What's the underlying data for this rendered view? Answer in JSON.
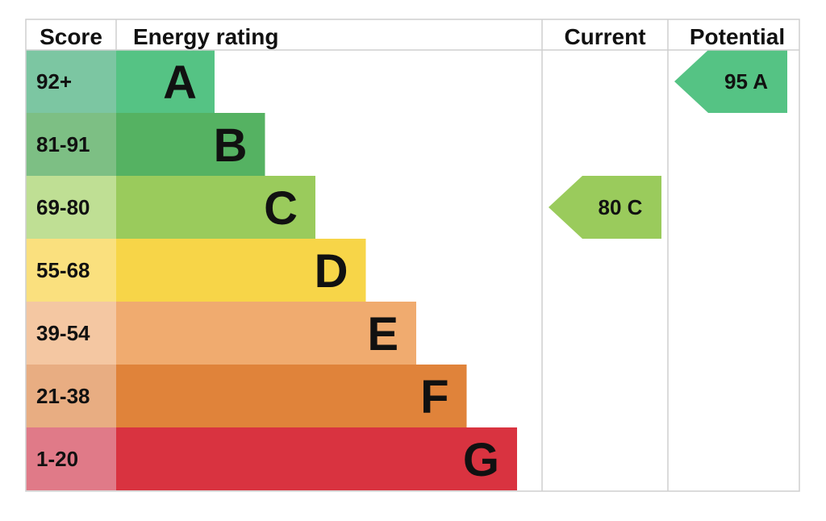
{
  "headers": {
    "score": "Score",
    "energy_rating": "Energy rating",
    "current": "Current",
    "potential": "Potential"
  },
  "chart_data": {
    "type": "bar",
    "title": "",
    "categories": [
      "A",
      "B",
      "C",
      "D",
      "E",
      "F",
      "G"
    ],
    "score_ranges": [
      "92+",
      "81-91",
      "69-80",
      "55-68",
      "39-54",
      "21-38",
      "1-20"
    ],
    "bar_colors": [
      "#55c384",
      "#55b262",
      "#9acb5c",
      "#f7d548",
      "#f0ab6f",
      "#e0833a",
      "#d93340"
    ],
    "score_colors": [
      "#7cc6a2",
      "#7dbf84",
      "#bfdf94",
      "#fae07e",
      "#f4c7a2",
      "#e8ad82",
      "#e07a88"
    ],
    "current": {
      "value": 80,
      "band": "C",
      "label": "80  C",
      "color": "#9acb5c"
    },
    "potential": {
      "value": 95,
      "band": "A",
      "label": "95  A",
      "color": "#55c384"
    }
  }
}
